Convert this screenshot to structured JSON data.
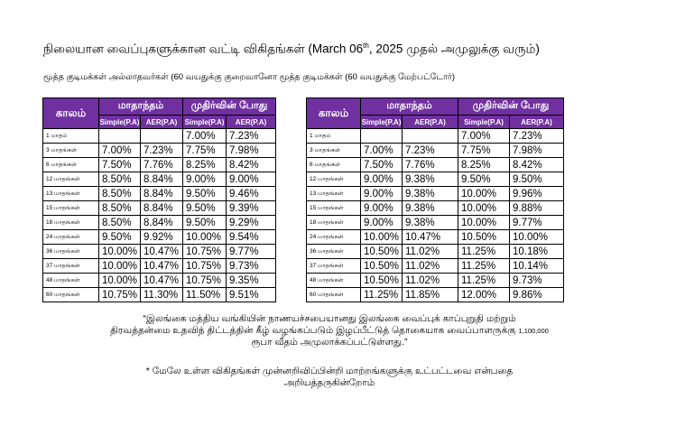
{
  "title": {
    "main": "நிலையான வைப்புகளுக்கான வட்டி விகிதங்கள் (March 06",
    "sup": "th",
    "tail": ", 2025 முதல் அமுலுக்கு வரும்)"
  },
  "subtitle": "மூத்த குடிமக்கள் அல்லாதவர்கள் (60 வயதுக்கு குறைவானோ மூத்த குடிமக்கள் (60 வயதுக்கு மேற்பட்டோர்)",
  "headers": {
    "period": "காலம்",
    "monthly": "மாதாந்தம்",
    "maturity": "முதிர்வின் போது",
    "simple": "Simple(P.A)",
    "aer": "AER(P.A)"
  },
  "accent_color": "#7030a0",
  "table_non_senior": [
    [
      "1 மாதம்",
      "",
      "",
      "7.00%",
      "7.23%"
    ],
    [
      "3 மாதங்கள்",
      "7.00%",
      "7.23%",
      "7.75%",
      "7.98%"
    ],
    [
      "6 மாதங்கள்",
      "7.50%",
      "7.76%",
      "8.25%",
      "8.42%"
    ],
    [
      "12 மாதங்கள்",
      "8.50%",
      "8.84%",
      "9.00%",
      "9.00%"
    ],
    [
      "13 மாதங்கள்",
      "8.50%",
      "8.84%",
      "9.50%",
      "9.46%"
    ],
    [
      "15 மாதங்கள்",
      "8.50%",
      "8.84%",
      "9.50%",
      "9.39%"
    ],
    [
      "18 மாதங்கள்",
      "8.50%",
      "8.84%",
      "9.50%",
      "9.29%"
    ],
    [
      "24 மாதங்கள்",
      "9.50%",
      "9.92%",
      "10.00%",
      "9.54%"
    ],
    [
      "36 மாதங்கள்",
      "10.00%",
      "10.47%",
      "10.75%",
      "9.77%"
    ],
    [
      "37 மாதங்கள்",
      "10.00%",
      "10.47%",
      "10.75%",
      "9.73%"
    ],
    [
      "48 மாதங்கள்",
      "10.00%",
      "10.47%",
      "10.75%",
      "9.35%"
    ],
    [
      "60 மாதங்கள்",
      "10.75%",
      "11.30%",
      "11.50%",
      "9.51%"
    ]
  ],
  "table_senior": [
    [
      "1 மாதம்",
      "",
      "",
      "7.00%",
      "7.23%"
    ],
    [
      "3 மாதங்கள்",
      "7.00%",
      "7.23%",
      "7.75%",
      "7.98%"
    ],
    [
      "6 மாதங்கள்",
      "7.50%",
      "7.76%",
      "8.25%",
      "8.42%"
    ],
    [
      "12 மாதங்கள்",
      "9.00%",
      "9.38%",
      "9.50%",
      "9.50%"
    ],
    [
      "13 மாதங்கள்",
      "9.00%",
      "9.38%",
      "10.00%",
      "9.96%"
    ],
    [
      "15 மாதங்கள்",
      "9.00%",
      "9.38%",
      "10.00%",
      "9.88%"
    ],
    [
      "18 மாதங்கள்",
      "9.00%",
      "9.38%",
      "10.00%",
      "9.77%"
    ],
    [
      "24 மாதங்கள்",
      "10.00%",
      "10.47%",
      "10.50%",
      "10.00%"
    ],
    [
      "36 மாதங்கள்",
      "10.50%",
      "11.02%",
      "11.25%",
      "10.18%"
    ],
    [
      "37 மாதங்கள்",
      "10.50%",
      "11.02%",
      "11.25%",
      "10.14%"
    ],
    [
      "48 மாதங்கள்",
      "10.50%",
      "11.02%",
      "11.25%",
      "9.73%"
    ],
    [
      "60 மாதங்கள்",
      "11.25%",
      "11.85%",
      "12.00%",
      "9.86%"
    ]
  ],
  "note1": {
    "line1": "“இலங்கை மத்திய வங்கியின் நாணயச்சபையானது இலங்கை வைப்புக் காப்புறுதி மற்றும்",
    "line2": "திரவத்தன்மை உதவித் திட்டத்தின் கீழ் வழங்கப்படும் இழப்பீட்டுத் தொகையாக வைப்பாளருக்கு",
    "amount": "1,100,000",
    "line3": "ரூபா வீதம் அமுலாக்கப்பட்டுள்ளது.”"
  },
  "note2": {
    "line1": "* மேலே உள்ள விகிதங்கள் முன்னறிவிப்பின்றி மாற்றங்களுக்கு உட்பட்டவை என்பதை",
    "line2": "அறியத்தருகின்றோம்"
  }
}
